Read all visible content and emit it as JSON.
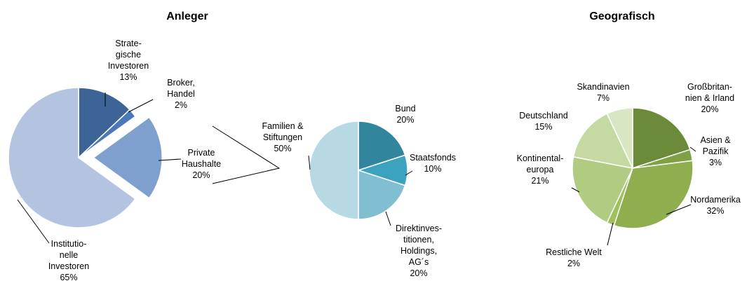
{
  "chart_data": [
    {
      "type": "pie",
      "title": "Anleger",
      "categories": [
        "Strate-\ngische\nInvestoren",
        "Broker,\nHandel",
        "Private\nHaushalte",
        "Institutio-\nnelle\nInvestoren"
      ],
      "values": [
        13,
        2,
        20,
        65
      ],
      "value_labels": [
        "13%",
        "2%",
        "20%",
        "65%"
      ],
      "colors": [
        "#3d6496",
        "#4a78b8",
        "#7f9fcf",
        "#b4c3df"
      ],
      "explode": [
        false,
        false,
        true,
        false
      ]
    },
    {
      "type": "pie",
      "categories": [
        "Bund",
        "Staatsfonds",
        "Direktinves-\ntitionen,\nHoldings,\nAG´s",
        "Familien &\nStiftungen"
      ],
      "values": [
        20,
        10,
        20,
        50
      ],
      "value_labels": [
        "20%",
        "10%",
        "20%",
        "50%"
      ],
      "colors": [
        "#31859c",
        "#3ca3bf",
        "#7fbfd1",
        "#b7d9e4"
      ],
      "explode": [
        false,
        false,
        false,
        false
      ]
    },
    {
      "type": "pie",
      "title": "Geografisch",
      "categories": [
        "Großbritan-\nnien & Irland",
        "Asien &\nPazifik",
        "Nordamerika",
        "Restliche Welt",
        "Kontinental-\neuropa",
        "Deutschland",
        "Skandinavien"
      ],
      "values": [
        20,
        3,
        32,
        2,
        21,
        15,
        7
      ],
      "value_labels": [
        "20%",
        "3%",
        "32%",
        "2%",
        "21%",
        "15%",
        "7%"
      ],
      "colors": [
        "#6b8a3a",
        "#7fa044",
        "#8fae4e",
        "#9fc05e",
        "#b0cc83",
        "#c5daa3",
        "#d8e6c4"
      ],
      "explode": [
        false,
        false,
        false,
        false,
        false,
        false,
        false
      ]
    }
  ]
}
